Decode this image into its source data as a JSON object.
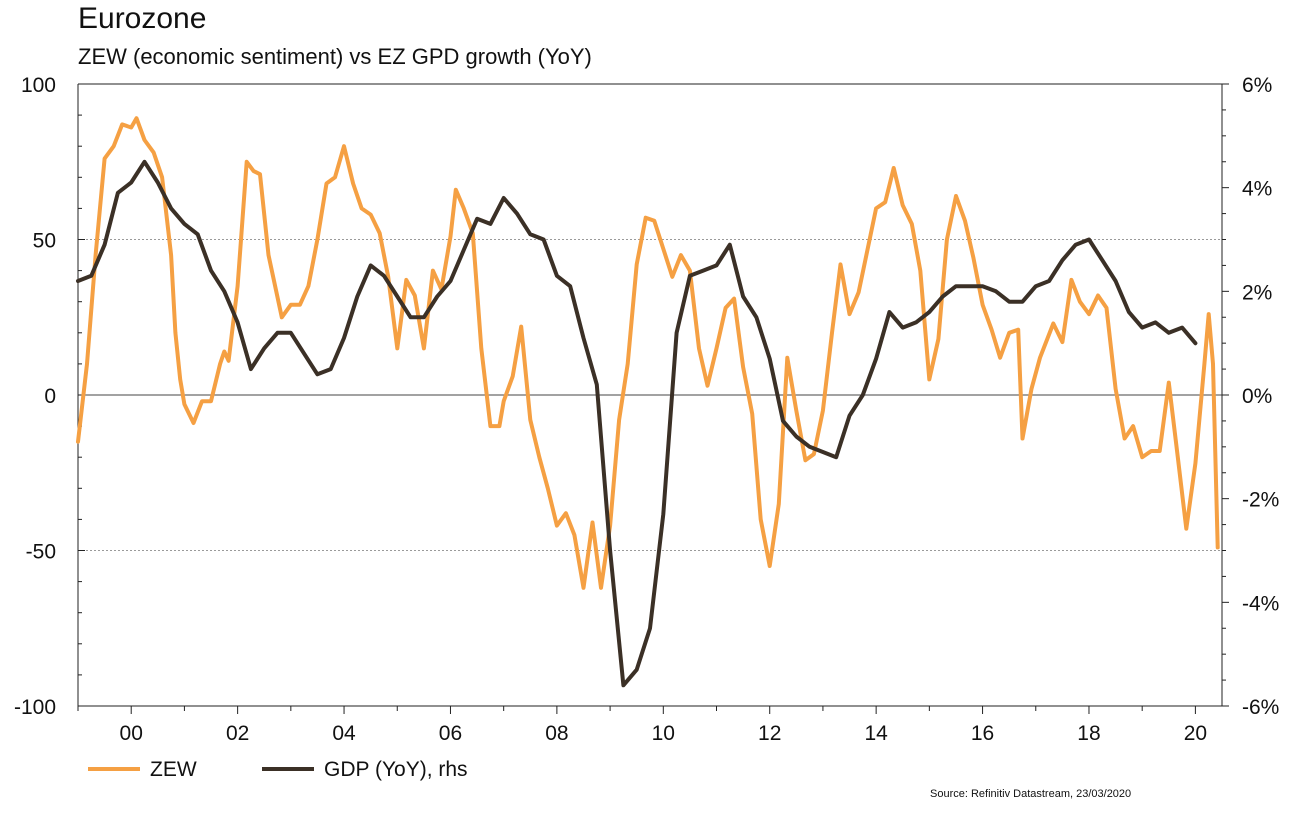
{
  "chart_data": {
    "type": "line",
    "title": "Eurozone",
    "subtitle": "ZEW (economic sentiment) vs EZ GPD growth (YoY)",
    "source": "Source: Refinitiv Datastream, 23/03/2020",
    "x_ticks": [
      "00",
      "02",
      "04",
      "06",
      "08",
      "10",
      "12",
      "14",
      "16",
      "18",
      "20"
    ],
    "xlim": [
      1999.0,
      2020.5
    ],
    "y_left": {
      "lim": [
        -100,
        100
      ],
      "ticks": [
        "100",
        "50",
        "0",
        "-50",
        "-100"
      ]
    },
    "y_right": {
      "lim": [
        -6,
        6
      ],
      "ticks": [
        "6%",
        "4%",
        "2%",
        "0%",
        "-2%",
        "-4%",
        "-6%"
      ]
    },
    "grid": "dotted at ±50, solid zero line",
    "legend_position": "bottom-left",
    "series": [
      {
        "name": "ZEW",
        "axis": "left",
        "color": "#f5a043",
        "points": [
          [
            1999.0,
            -15
          ],
          [
            1999.17,
            10
          ],
          [
            1999.33,
            45
          ],
          [
            1999.5,
            76
          ],
          [
            1999.67,
            80
          ],
          [
            1999.83,
            87
          ],
          [
            2000.0,
            86
          ],
          [
            2000.1,
            89
          ],
          [
            2000.25,
            82
          ],
          [
            2000.42,
            78
          ],
          [
            2000.58,
            70
          ],
          [
            2000.75,
            45
          ],
          [
            2000.83,
            20
          ],
          [
            2000.92,
            5
          ],
          [
            2001.0,
            -3
          ],
          [
            2001.17,
            -9
          ],
          [
            2001.33,
            -2
          ],
          [
            2001.5,
            -2
          ],
          [
            2001.67,
            10
          ],
          [
            2001.75,
            14
          ],
          [
            2001.83,
            11
          ],
          [
            2002.0,
            35
          ],
          [
            2002.17,
            75
          ],
          [
            2002.3,
            72
          ],
          [
            2002.42,
            71
          ],
          [
            2002.58,
            45
          ],
          [
            2002.83,
            25
          ],
          [
            2003.0,
            29
          ],
          [
            2003.17,
            29
          ],
          [
            2003.33,
            35
          ],
          [
            2003.5,
            50
          ],
          [
            2003.67,
            68
          ],
          [
            2003.83,
            70
          ],
          [
            2004.0,
            80
          ],
          [
            2004.17,
            68
          ],
          [
            2004.33,
            60
          ],
          [
            2004.5,
            58
          ],
          [
            2004.67,
            52
          ],
          [
            2004.83,
            38
          ],
          [
            2005.0,
            15
          ],
          [
            2005.17,
            37
          ],
          [
            2005.33,
            32
          ],
          [
            2005.5,
            15
          ],
          [
            2005.67,
            40
          ],
          [
            2005.83,
            34
          ],
          [
            2006.0,
            51
          ],
          [
            2006.1,
            66
          ],
          [
            2006.25,
            60
          ],
          [
            2006.42,
            52
          ],
          [
            2006.58,
            15
          ],
          [
            2006.75,
            -10
          ],
          [
            2006.92,
            -10
          ],
          [
            2007.0,
            -2
          ],
          [
            2007.17,
            6
          ],
          [
            2007.33,
            22
          ],
          [
            2007.5,
            -8
          ],
          [
            2007.67,
            -20
          ],
          [
            2007.83,
            -30
          ],
          [
            2008.0,
            -42
          ],
          [
            2008.17,
            -38
          ],
          [
            2008.33,
            -45
          ],
          [
            2008.5,
            -62
          ],
          [
            2008.67,
            -41
          ],
          [
            2008.83,
            -62
          ],
          [
            2009.0,
            -42
          ],
          [
            2009.17,
            -8
          ],
          [
            2009.33,
            10
          ],
          [
            2009.5,
            42
          ],
          [
            2009.67,
            57
          ],
          [
            2009.83,
            56
          ],
          [
            2010.0,
            47
          ],
          [
            2010.17,
            38
          ],
          [
            2010.33,
            45
          ],
          [
            2010.5,
            40
          ],
          [
            2010.67,
            15
          ],
          [
            2010.83,
            3
          ],
          [
            2011.0,
            15
          ],
          [
            2011.17,
            28
          ],
          [
            2011.33,
            31
          ],
          [
            2011.5,
            9
          ],
          [
            2011.67,
            -6
          ],
          [
            2011.83,
            -40
          ],
          [
            2012.0,
            -55
          ],
          [
            2012.17,
            -35
          ],
          [
            2012.33,
            12
          ],
          [
            2012.5,
            -5
          ],
          [
            2012.67,
            -21
          ],
          [
            2012.83,
            -19
          ],
          [
            2013.0,
            -5
          ],
          [
            2013.17,
            20
          ],
          [
            2013.33,
            42
          ],
          [
            2013.5,
            26
          ],
          [
            2013.67,
            33
          ],
          [
            2014.0,
            60
          ],
          [
            2014.17,
            62
          ],
          [
            2014.33,
            73
          ],
          [
            2014.5,
            61
          ],
          [
            2014.67,
            55
          ],
          [
            2014.83,
            40
          ],
          [
            2015.0,
            5
          ],
          [
            2015.17,
            18
          ],
          [
            2015.33,
            50
          ],
          [
            2015.5,
            64
          ],
          [
            2015.67,
            56
          ],
          [
            2015.83,
            44
          ],
          [
            2016.0,
            29
          ],
          [
            2016.17,
            21
          ],
          [
            2016.33,
            12
          ],
          [
            2016.5,
            20
          ],
          [
            2016.67,
            21
          ],
          [
            2016.75,
            -14
          ],
          [
            2016.92,
            2
          ],
          [
            2017.08,
            12
          ],
          [
            2017.33,
            23
          ],
          [
            2017.5,
            17
          ],
          [
            2017.67,
            37
          ],
          [
            2017.83,
            30
          ],
          [
            2018.0,
            26
          ],
          [
            2018.17,
            32
          ],
          [
            2018.33,
            28
          ],
          [
            2018.5,
            2
          ],
          [
            2018.67,
            -14
          ],
          [
            2018.83,
            -10
          ],
          [
            2019.0,
            -20
          ],
          [
            2019.17,
            -18
          ],
          [
            2019.33,
            -18
          ],
          [
            2019.5,
            4
          ],
          [
            2019.67,
            -20
          ],
          [
            2019.83,
            -43
          ],
          [
            2020.0,
            -22
          ],
          [
            2020.17,
            10
          ],
          [
            2020.25,
            26
          ],
          [
            2020.33,
            10
          ],
          [
            2020.42,
            -49
          ]
        ]
      },
      {
        "name": "GDP (YoY), rhs",
        "axis": "right",
        "color": "#3b3026",
        "points": [
          [
            1999.0,
            2.2
          ],
          [
            1999.25,
            2.3
          ],
          [
            1999.5,
            2.9
          ],
          [
            1999.75,
            3.9
          ],
          [
            2000.0,
            4.1
          ],
          [
            2000.25,
            4.5
          ],
          [
            2000.5,
            4.1
          ],
          [
            2000.75,
            3.6
          ],
          [
            2001.0,
            3.3
          ],
          [
            2001.25,
            3.1
          ],
          [
            2001.5,
            2.4
          ],
          [
            2001.75,
            2.0
          ],
          [
            2002.0,
            1.4
          ],
          [
            2002.25,
            0.5
          ],
          [
            2002.5,
            0.9
          ],
          [
            2002.75,
            1.2
          ],
          [
            2003.0,
            1.2
          ],
          [
            2003.5,
            0.4
          ],
          [
            2003.75,
            0.5
          ],
          [
            2004.0,
            1.1
          ],
          [
            2004.25,
            1.9
          ],
          [
            2004.5,
            2.5
          ],
          [
            2004.75,
            2.3
          ],
          [
            2005.0,
            1.9
          ],
          [
            2005.25,
            1.5
          ],
          [
            2005.5,
            1.5
          ],
          [
            2005.75,
            1.9
          ],
          [
            2006.0,
            2.2
          ],
          [
            2006.25,
            2.8
          ],
          [
            2006.5,
            3.4
          ],
          [
            2006.75,
            3.3
          ],
          [
            2007.0,
            3.8
          ],
          [
            2007.25,
            3.5
          ],
          [
            2007.5,
            3.1
          ],
          [
            2007.75,
            3.0
          ],
          [
            2008.0,
            2.3
          ],
          [
            2008.25,
            2.1
          ],
          [
            2008.5,
            1.1
          ],
          [
            2008.75,
            0.2
          ],
          [
            2009.0,
            -3.0
          ],
          [
            2009.25,
            -5.6
          ],
          [
            2009.5,
            -5.3
          ],
          [
            2009.75,
            -4.5
          ],
          [
            2010.0,
            -2.3
          ],
          [
            2010.25,
            1.2
          ],
          [
            2010.5,
            2.3
          ],
          [
            2010.75,
            2.4
          ],
          [
            2011.0,
            2.5
          ],
          [
            2011.25,
            2.9
          ],
          [
            2011.5,
            1.9
          ],
          [
            2011.75,
            1.5
          ],
          [
            2012.0,
            0.7
          ],
          [
            2012.25,
            -0.5
          ],
          [
            2012.5,
            -0.8
          ],
          [
            2012.75,
            -1.0
          ],
          [
            2013.0,
            -1.1
          ],
          [
            2013.25,
            -1.2
          ],
          [
            2013.5,
            -0.4
          ],
          [
            2013.75,
            0.0
          ],
          [
            2014.0,
            0.7
          ],
          [
            2014.25,
            1.6
          ],
          [
            2014.5,
            1.3
          ],
          [
            2014.75,
            1.4
          ],
          [
            2015.0,
            1.6
          ],
          [
            2015.25,
            1.9
          ],
          [
            2015.5,
            2.1
          ],
          [
            2015.75,
            2.1
          ],
          [
            2016.0,
            2.1
          ],
          [
            2016.25,
            2.0
          ],
          [
            2016.5,
            1.8
          ],
          [
            2016.75,
            1.8
          ],
          [
            2017.0,
            2.1
          ],
          [
            2017.25,
            2.2
          ],
          [
            2017.5,
            2.6
          ],
          [
            2017.75,
            2.9
          ],
          [
            2018.0,
            3.0
          ],
          [
            2018.25,
            2.6
          ],
          [
            2018.5,
            2.2
          ],
          [
            2018.75,
            1.6
          ],
          [
            2019.0,
            1.3
          ],
          [
            2019.25,
            1.4
          ],
          [
            2019.5,
            1.2
          ],
          [
            2019.75,
            1.3
          ],
          [
            2020.0,
            1.0
          ]
        ]
      }
    ]
  }
}
